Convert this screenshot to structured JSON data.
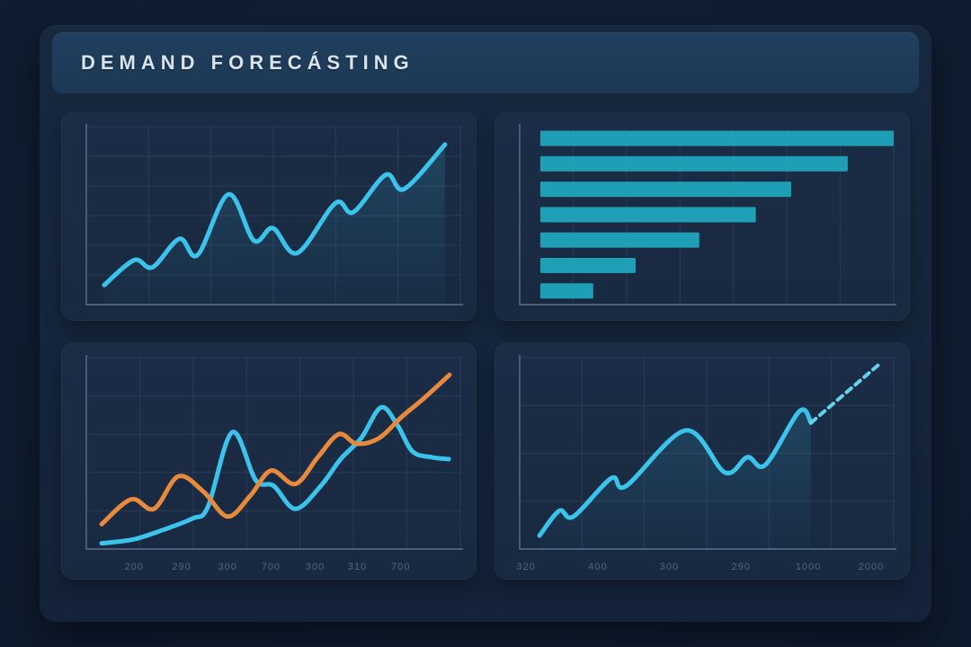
{
  "title": "DEMAND FORECÁSTING",
  "colors": {
    "background": "#0e1b2e",
    "card": "#152339",
    "titlebar": "#1e3a55",
    "panel": "#1a2b42",
    "grid": "rgba(150,180,212,0.13)",
    "axis": "rgba(175,198,222,0.45)",
    "cyan": "#3cc3ec",
    "forecast_cyan": "#63d2ec",
    "teal": "#1f9fb6",
    "orange": "#e78a3e",
    "label": "#5a7189"
  },
  "chart_data": [
    {
      "id": "demand-trend",
      "type": "line",
      "grid": {
        "h": 6,
        "v": 6
      },
      "xlabels": [],
      "xlabel_pos": [],
      "ylim": [
        0,
        100
      ],
      "series": [
        {
          "name": "historical-demand",
          "color": "#3cc3ec",
          "width": 5,
          "area": true,
          "points": [
            [
              4.8,
              11
            ],
            [
              12.8,
              25
            ],
            [
              17.7,
              21
            ],
            [
              24.9,
              37
            ],
            [
              29.8,
              28
            ],
            [
              38,
              62
            ],
            [
              44.8,
              36
            ],
            [
              49.9,
              43
            ],
            [
              56.4,
              29
            ],
            [
              66.6,
              57
            ],
            [
              71.4,
              52
            ],
            [
              80.1,
              73
            ],
            [
              85,
              65
            ],
            [
              95.9,
              90
            ]
          ]
        }
      ]
    },
    {
      "id": "category-ranking",
      "type": "bar-horizontal",
      "grid": {
        "h": 0,
        "v": 7
      },
      "bar_color": "#1f9fb6",
      "values": [
        100,
        87,
        71,
        61,
        45,
        27,
        15
      ],
      "ylim": [
        0,
        100
      ]
    },
    {
      "id": "actual-vs-forecast-comparison",
      "type": "line",
      "grid": {
        "h": 5,
        "v": 7
      },
      "xlabels": [
        "200",
        "290",
        "300",
        "700",
        "300",
        "310",
        "700"
      ],
      "xlabel_pos": [
        12.8,
        25.5,
        37.8,
        49.4,
        61.2,
        72.5,
        84.1
      ],
      "ylim": [
        0,
        100
      ],
      "series": [
        {
          "name": "demand-cyan",
          "color": "#3cc3ec",
          "width": 5,
          "area": false,
          "points": [
            [
              4.1,
              3
            ],
            [
              12.5,
              5
            ],
            [
              20.5,
              10
            ],
            [
              28.4,
              16
            ],
            [
              32.5,
              22
            ],
            [
              39,
              61
            ],
            [
              45.3,
              36
            ],
            [
              50.1,
              33
            ],
            [
              55.9,
              21
            ],
            [
              62.7,
              33
            ],
            [
              68,
              47
            ],
            [
              73.5,
              58
            ],
            [
              78.8,
              74
            ],
            [
              83.1,
              65
            ],
            [
              87.2,
              51
            ],
            [
              92.3,
              48
            ],
            [
              96.9,
              47
            ]
          ]
        },
        {
          "name": "demand-orange",
          "color": "#e78a3e",
          "width": 5,
          "area": false,
          "points": [
            [
              4.1,
              13
            ],
            [
              12,
              26
            ],
            [
              18.1,
              21
            ],
            [
              24.6,
              38
            ],
            [
              31.3,
              30
            ],
            [
              37.8,
              17
            ],
            [
              43.9,
              28
            ],
            [
              49.4,
              41
            ],
            [
              55.9,
              34
            ],
            [
              61.9,
              48
            ],
            [
              67.5,
              60
            ],
            [
              72.3,
              55
            ],
            [
              78.3,
              58
            ],
            [
              84.3,
              69
            ],
            [
              90.4,
              79
            ],
            [
              97.1,
              91
            ]
          ]
        }
      ]
    },
    {
      "id": "forecast-projection",
      "type": "line",
      "grid": {
        "h": 4,
        "v": 6
      },
      "xlabels": [
        "320",
        "400",
        "300",
        "290",
        "1000",
        "2000"
      ],
      "xlabel_pos": [
        1.7,
        20.9,
        40,
        59.2,
        77.2,
        94
      ],
      "ylim": [
        0,
        100
      ],
      "series": [
        {
          "name": "actual-demand",
          "color": "#3cc3ec",
          "width": 5,
          "area": true,
          "points": [
            [
              5.3,
              7
            ],
            [
              10.6,
              20
            ],
            [
              14.4,
              17
            ],
            [
              24.5,
              37
            ],
            [
              28.5,
              33
            ],
            [
              44.4,
              62
            ],
            [
              54.9,
              40
            ],
            [
              60.9,
              48
            ],
            [
              65.7,
              44
            ],
            [
              74.8,
              72
            ],
            [
              77.9,
              66
            ]
          ]
        },
        {
          "name": "forecast-dashed",
          "color": "#63d2ec",
          "width": 4,
          "area": false,
          "dash": "7 6",
          "straight": true,
          "points": [
            [
              77.9,
              66
            ],
            [
              96.4,
              97
            ]
          ]
        }
      ]
    }
  ]
}
